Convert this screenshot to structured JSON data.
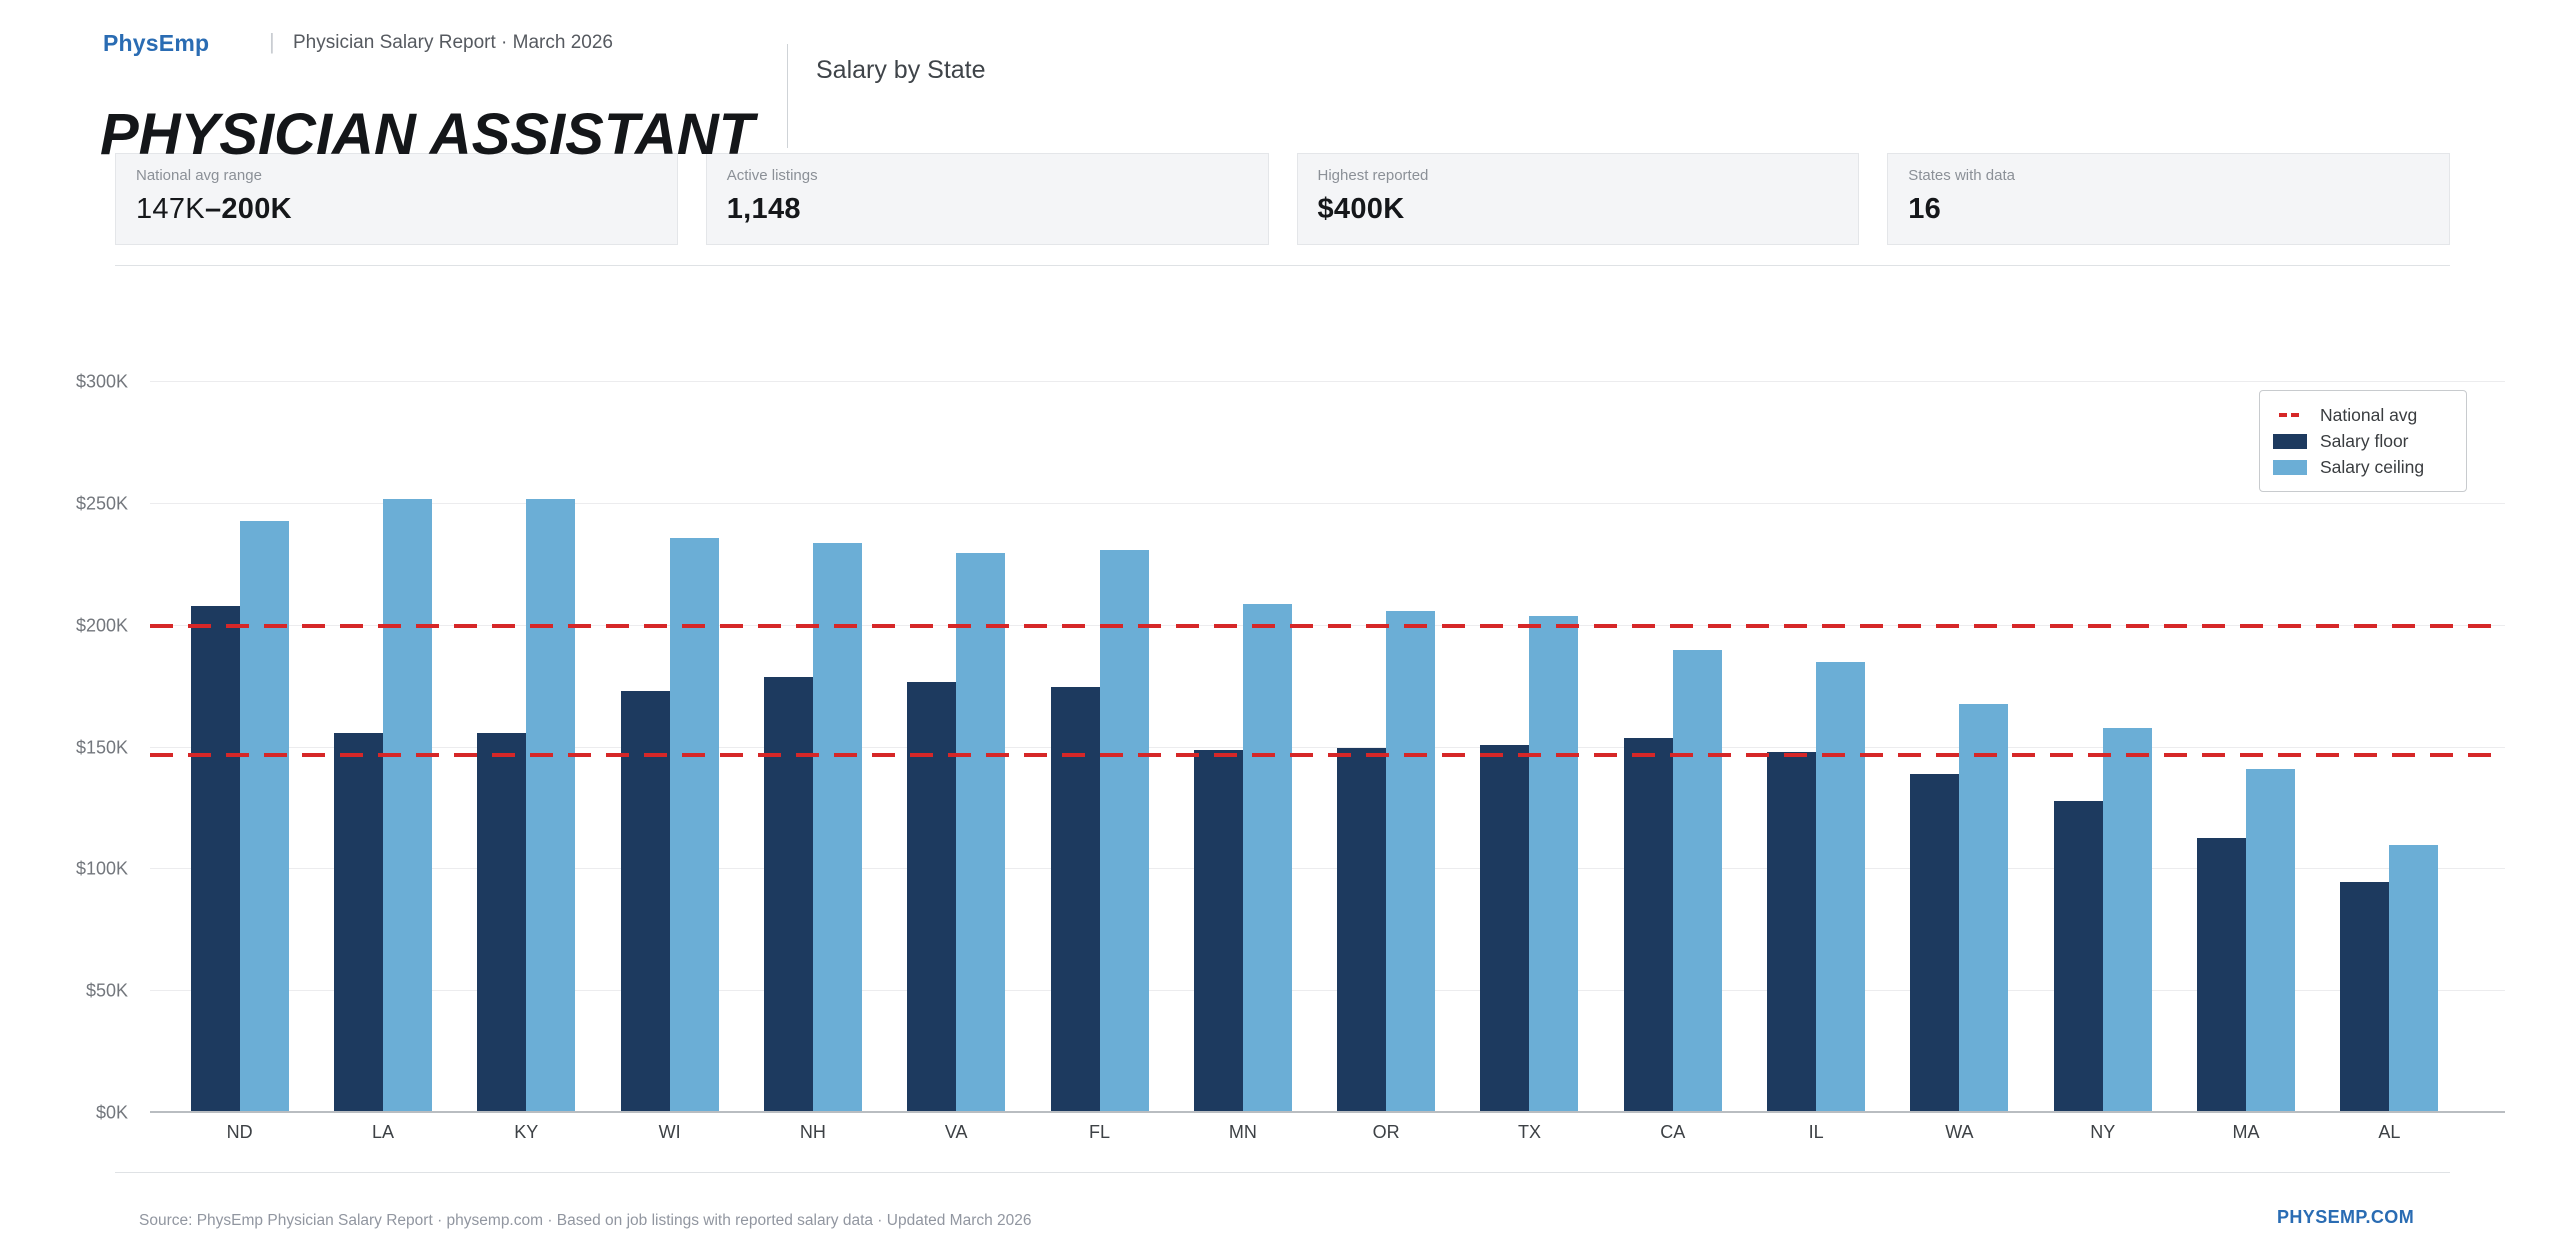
{
  "header": {
    "brand": "PhysEmp",
    "pipe": "|",
    "report_label": "Physician Salary Report · March 2026",
    "section_title": "Salary by State",
    "page_title": "PHYSICIAN ASSISTANT"
  },
  "stats": {
    "cards": [
      {
        "label": "National avg range",
        "value_low": "147K",
        "dash": "–",
        "value_high": "200K"
      },
      {
        "label": "Active listings",
        "value": "1,148"
      },
      {
        "label": "Highest reported",
        "value": "$400K"
      },
      {
        "label": "States with data",
        "value": "16"
      }
    ]
  },
  "chart_data": {
    "type": "bar",
    "title": "Salary by State",
    "categories": [
      "ND",
      "LA",
      "KY",
      "WI",
      "NH",
      "VA",
      "FL",
      "MN",
      "OR",
      "TX",
      "CA",
      "IL",
      "WA",
      "NY",
      "MA",
      "AL"
    ],
    "series": [
      {
        "name": "Salary floor",
        "color": "#1d3a5f",
        "values": [
          208,
          156,
          156,
          173,
          179,
          177,
          175,
          149,
          150,
          151,
          154,
          148,
          139,
          128,
          113,
          95
        ]
      },
      {
        "name": "Salary ceiling",
        "color": "#6baed6",
        "values": [
          243,
          252,
          252,
          236,
          234,
          230,
          231,
          209,
          206,
          204,
          190,
          185,
          168,
          158,
          141,
          110
        ]
      }
    ],
    "reference_lines": {
      "name": "National avg",
      "color": "#d62728",
      "values": [
        147,
        200
      ],
      "style": "dashed"
    },
    "y_ticks": [
      "$0K",
      "$50K",
      "$100K",
      "$150K",
      "$200K",
      "$250K",
      "$300K"
    ],
    "y_tick_values": [
      0,
      50,
      100,
      150,
      200,
      250,
      300
    ],
    "ylim": [
      0,
      300
    ],
    "xlabel": "",
    "ylabel": "",
    "grid": true,
    "legend_position": "top-right",
    "legend": [
      "National avg",
      "Salary floor",
      "Salary ceiling"
    ]
  },
  "footer": {
    "source_line": "Source: PhysEmp Physician Salary Report · physemp.com · Based on job listings with reported salary data · Updated March 2026",
    "brand": "PHYSEMP.COM"
  }
}
